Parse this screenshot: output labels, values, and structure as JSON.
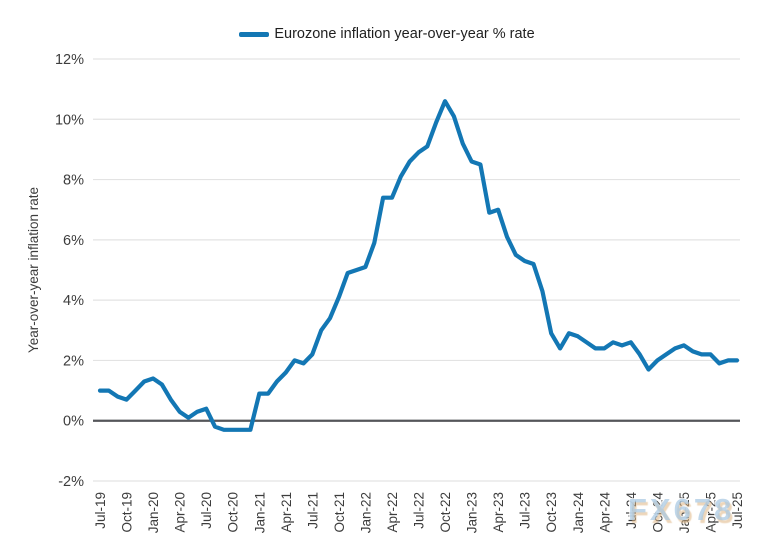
{
  "legend": {
    "label": "Eurozone inflation year-over-year % rate"
  },
  "watermark": {
    "text": "FX678"
  },
  "colors": {
    "line": "#1377b4",
    "zero_line": "#55565a",
    "gridline": "#e3e3e3",
    "tick_text": "#3d3d3d",
    "axis_title_text": "#3d3d3d"
  },
  "chart_data": {
    "type": "line",
    "title": "",
    "xlabel": "",
    "ylabel": "Year-over-year inflation rate",
    "ylim": [
      -2,
      12
    ],
    "ytick_step": 2,
    "ytick_labels": [
      "12%",
      "10%",
      "8%",
      "6%",
      "4%",
      "2%",
      "0%",
      "-2%"
    ],
    "grid": "horizontal",
    "zero_line": true,
    "legend_position": "top-center",
    "xtick_every_n_points": 3,
    "xtick_labels": [
      "Jul-19",
      "Oct-19",
      "Jan-20",
      "Apr-20",
      "Jul-20",
      "Oct-20",
      "Jan-21",
      "Apr-21",
      "Jul-21",
      "Oct-21",
      "Jan-22",
      "Apr-22",
      "Jul-22",
      "Oct-22",
      "Jan-23",
      "Apr-23",
      "Jul-23",
      "Oct-23",
      "Jan-24",
      "Apr-24",
      "Jul-24",
      "Oct-24",
      "Jan-25",
      "Apr-25",
      "Jul-25"
    ],
    "x": [
      "Jul-19",
      "Aug-19",
      "Sep-19",
      "Oct-19",
      "Nov-19",
      "Dec-19",
      "Jan-20",
      "Feb-20",
      "Mar-20",
      "Apr-20",
      "May-20",
      "Jun-20",
      "Jul-20",
      "Aug-20",
      "Sep-20",
      "Oct-20",
      "Nov-20",
      "Dec-20",
      "Jan-21",
      "Feb-21",
      "Mar-21",
      "Apr-21",
      "May-21",
      "Jun-21",
      "Jul-21",
      "Aug-21",
      "Sep-21",
      "Oct-21",
      "Nov-21",
      "Dec-21",
      "Jan-22",
      "Feb-22",
      "Mar-22",
      "Apr-22",
      "May-22",
      "Jun-22",
      "Jul-22",
      "Aug-22",
      "Sep-22",
      "Oct-22",
      "Nov-22",
      "Dec-22",
      "Jan-23",
      "Feb-23",
      "Mar-23",
      "Apr-23",
      "May-23",
      "Jun-23",
      "Jul-23",
      "Aug-23",
      "Sep-23",
      "Oct-23",
      "Nov-23",
      "Dec-23",
      "Jan-24",
      "Feb-24",
      "Mar-24",
      "Apr-24",
      "May-24",
      "Jun-24",
      "Jul-24",
      "Aug-24",
      "Sep-24",
      "Oct-24",
      "Nov-24",
      "Dec-24",
      "Jan-25",
      "Feb-25",
      "Mar-25",
      "Apr-25",
      "May-25",
      "Jun-25",
      "Jul-25"
    ],
    "series": [
      {
        "name": "Eurozone inflation year-over-year % rate",
        "values": [
          1.0,
          1.0,
          0.8,
          0.7,
          1.0,
          1.3,
          1.4,
          1.2,
          0.7,
          0.3,
          0.1,
          0.3,
          0.4,
          -0.2,
          -0.3,
          -0.3,
          -0.3,
          -0.3,
          0.9,
          0.9,
          1.3,
          1.6,
          2.0,
          1.9,
          2.2,
          3.0,
          3.4,
          4.1,
          4.9,
          5.0,
          5.1,
          5.9,
          7.4,
          7.4,
          8.1,
          8.6,
          8.9,
          9.1,
          9.9,
          10.6,
          10.1,
          9.2,
          8.6,
          8.5,
          6.9,
          7.0,
          6.1,
          5.5,
          5.3,
          5.2,
          4.3,
          2.9,
          2.4,
          2.9,
          2.8,
          2.6,
          2.4,
          2.4,
          2.6,
          2.5,
          2.6,
          2.2,
          1.7,
          2.0,
          2.2,
          2.4,
          2.5,
          2.3,
          2.2,
          2.2,
          1.9,
          2.0,
          2.0
        ]
      }
    ]
  }
}
